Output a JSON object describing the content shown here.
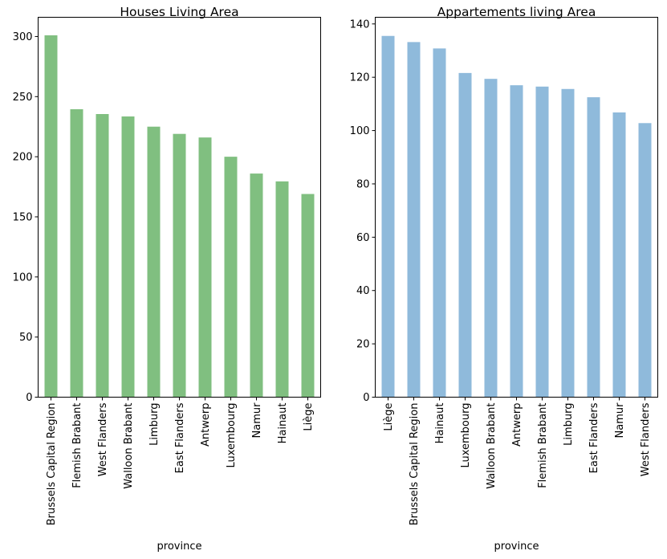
{
  "chart_data": [
    {
      "type": "bar",
      "title": "Houses Living Area",
      "xlabel": "province",
      "ylabel": "",
      "categories": [
        "Brussels Capital Region",
        "Flemish Brabant",
        "West Flanders",
        "Walloon Brabant",
        "Limburg",
        "East Flanders",
        "Antwerp",
        "Luxembourg",
        "Namur",
        "Hainaut",
        "Liège"
      ],
      "values": [
        301,
        239.5,
        235.5,
        233.5,
        225,
        219,
        216,
        200,
        186,
        179.5,
        169
      ],
      "ylim": [
        0,
        316
      ],
      "yticks": [
        0,
        50,
        100,
        150,
        200,
        250,
        300
      ],
      "color": "#80bf80",
      "grid": false,
      "legend": "none"
    },
    {
      "type": "bar",
      "title": "Appartements living Area",
      "xlabel": "province",
      "ylabel": "",
      "categories": [
        "Liège",
        "Brussels Capital Region",
        "Hainaut",
        "Luxembourg",
        "Walloon Brabant",
        "Antwerp",
        "Flemish Brabant",
        "Limburg",
        "East Flanders",
        "Namur",
        "West Flanders"
      ],
      "values": [
        135.5,
        133.2,
        130.8,
        121.6,
        119.4,
        117,
        116.5,
        115.6,
        112.5,
        106.8,
        102.8
      ],
      "ylim": [
        0,
        142.5
      ],
      "yticks": [
        0,
        20,
        40,
        60,
        80,
        100,
        120,
        140
      ],
      "color": "#8fbadb",
      "grid": false,
      "legend": "none"
    }
  ]
}
